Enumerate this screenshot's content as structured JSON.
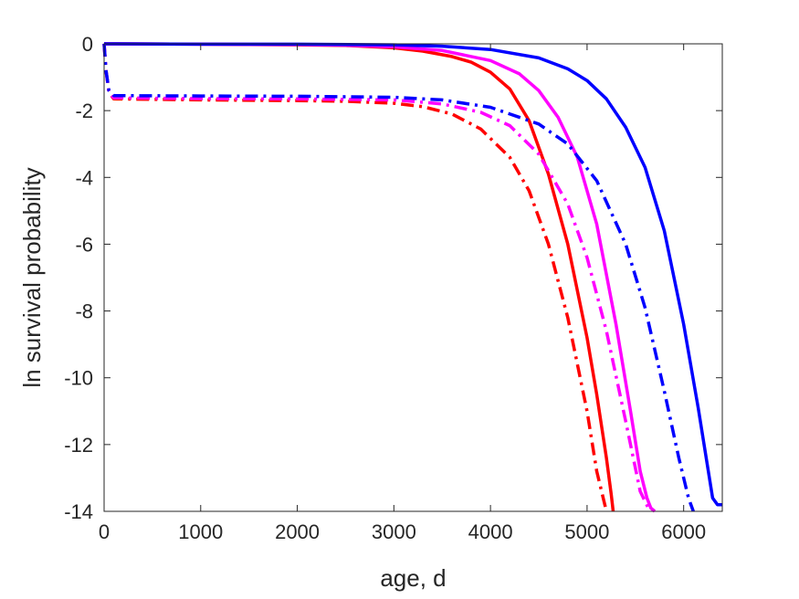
{
  "chart_data": {
    "type": "line",
    "title": "",
    "xlabel": "age, d",
    "ylabel": "ln survival probability",
    "xlim": [
      0,
      6400
    ],
    "ylim": [
      -14,
      0
    ],
    "xticks": [
      0,
      1000,
      2000,
      3000,
      4000,
      5000,
      6000
    ],
    "yticks": [
      0,
      -2,
      -4,
      -6,
      -8,
      -10,
      -12,
      -14
    ],
    "xtick_labels": [
      "0",
      "1000",
      "2000",
      "3000",
      "4000",
      "5000",
      "6000"
    ],
    "ytick_labels": [
      "0",
      "-2",
      "-4",
      "-6",
      "-8",
      "-10",
      "-12",
      "-14"
    ],
    "grid": false,
    "box": true,
    "series": [
      {
        "color": "#ff0000",
        "style": "solid",
        "x": [
          0,
          1000,
          2000,
          2500,
          3000,
          3300,
          3600,
          3800,
          4000,
          4200,
          4400,
          4600,
          4800,
          5000,
          5100,
          5200,
          5250,
          5270
        ],
        "y": [
          0,
          -0.01,
          -0.03,
          -0.05,
          -0.12,
          -0.22,
          -0.38,
          -0.55,
          -0.85,
          -1.35,
          -2.3,
          -3.9,
          -6.0,
          -8.8,
          -10.5,
          -12.4,
          -13.5,
          -14.0
        ]
      },
      {
        "color": "#ff00ff",
        "style": "solid",
        "x": [
          0,
          1000,
          2000,
          2500,
          3000,
          3500,
          4000,
          4300,
          4500,
          4700,
          4900,
          5100,
          5300,
          5450,
          5550,
          5620,
          5660,
          5700
        ],
        "y": [
          0,
          -0.01,
          -0.02,
          -0.04,
          -0.09,
          -0.2,
          -0.5,
          -0.9,
          -1.4,
          -2.2,
          -3.4,
          -5.4,
          -8.4,
          -11.0,
          -12.8,
          -13.6,
          -13.9,
          -14.0
        ]
      },
      {
        "color": "#0000ff",
        "style": "solid",
        "x": [
          0,
          1000,
          2000,
          3000,
          3500,
          4000,
          4500,
          4800,
          5000,
          5200,
          5400,
          5600,
          5800,
          6000,
          6150,
          6300,
          6350,
          6400
        ],
        "y": [
          0,
          -0.01,
          -0.01,
          -0.03,
          -0.07,
          -0.17,
          -0.42,
          -0.75,
          -1.1,
          -1.65,
          -2.5,
          -3.7,
          -5.6,
          -8.4,
          -10.9,
          -13.6,
          -13.8,
          -13.8
        ]
      },
      {
        "color": "#ff0000",
        "style": "dashdot",
        "x": [
          0,
          20,
          50,
          100,
          1000,
          2000,
          2500,
          3000,
          3300,
          3600,
          3900,
          4200,
          4400,
          4600,
          4800,
          5000,
          5100,
          5200
        ],
        "y": [
          0,
          -0.8,
          -1.45,
          -1.65,
          -1.68,
          -1.7,
          -1.72,
          -1.78,
          -1.88,
          -2.1,
          -2.55,
          -3.4,
          -4.4,
          -6.0,
          -8.2,
          -11.0,
          -12.8,
          -14.0
        ]
      },
      {
        "color": "#ff00ff",
        "style": "dashdot",
        "x": [
          0,
          20,
          50,
          100,
          1000,
          2000,
          3000,
          3500,
          3900,
          4200,
          4500,
          4800,
          5000,
          5200,
          5400,
          5550,
          5650
        ],
        "y": [
          0,
          -0.8,
          -1.45,
          -1.62,
          -1.64,
          -1.65,
          -1.68,
          -1.8,
          -2.05,
          -2.45,
          -3.3,
          -4.8,
          -6.4,
          -8.6,
          -11.3,
          -13.4,
          -14.0
        ]
      },
      {
        "color": "#0000ff",
        "style": "dashdot",
        "x": [
          0,
          20,
          50,
          100,
          1000,
          2000,
          3000,
          3500,
          4000,
          4500,
          4800,
          5100,
          5400,
          5600,
          5800,
          5950,
          6050,
          6100
        ],
        "y": [
          0,
          -0.8,
          -1.4,
          -1.55,
          -1.56,
          -1.57,
          -1.6,
          -1.68,
          -1.9,
          -2.4,
          -3.0,
          -4.1,
          -6.0,
          -7.9,
          -10.4,
          -12.4,
          -13.6,
          -14.0
        ]
      }
    ]
  }
}
